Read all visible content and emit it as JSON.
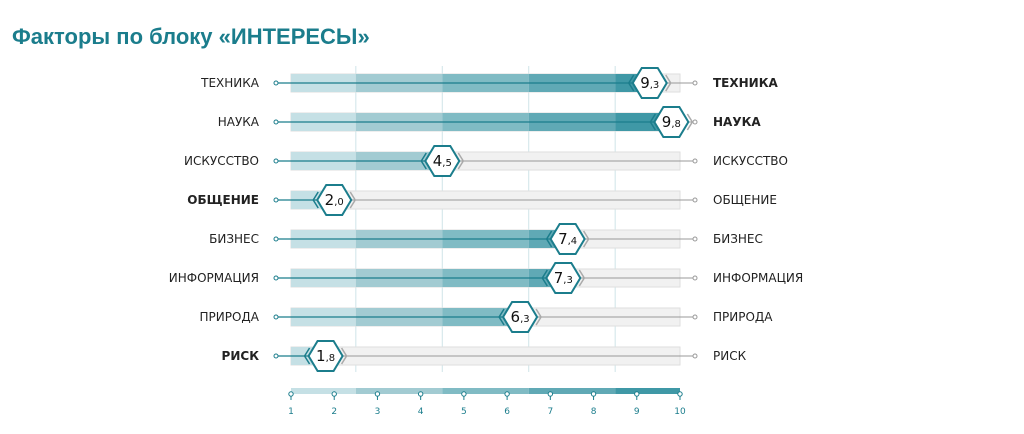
{
  "chart_data": {
    "type": "bar",
    "title": "Факторы по блоку «ИНТЕРЕСЫ»",
    "categories": [
      "ТЕХНИКА",
      "НАУКА",
      "ИСКУССТВО",
      "ОБЩЕНИЕ",
      "БИЗНЕС",
      "ИНФОРМАЦИЯ",
      "ПРИРОДА",
      "РИСК"
    ],
    "values": [
      9.3,
      9.8,
      4.5,
      2.0,
      7.4,
      7.3,
      6.3,
      1.8
    ],
    "value_labels": [
      [
        "9",
        ",3"
      ],
      [
        "9",
        ",8"
      ],
      [
        "4",
        ",5"
      ],
      [
        "2",
        ",0"
      ],
      [
        "7",
        ",4"
      ],
      [
        "7",
        ",3"
      ],
      [
        "6",
        ",3"
      ],
      [
        "1",
        ",8"
      ]
    ],
    "bold_left": [
      "ОБЩЕНИЕ",
      "РИСК"
    ],
    "bold_right": [
      "ТЕХНИКА",
      "НАУКА"
    ],
    "xlim": [
      1,
      10
    ],
    "xticks": [
      "1",
      "2",
      "3",
      "4",
      "5",
      "6",
      "7",
      "8",
      "9",
      "10"
    ],
    "bands": [
      [
        1,
        2.5
      ],
      [
        2.5,
        4.5
      ],
      [
        4.5,
        6.5
      ],
      [
        6.5,
        8.5
      ],
      [
        8.5,
        10
      ]
    ],
    "band_colors": [
      "#c5e0e5",
      "#a2cbd2",
      "#80bbc4",
      "#60a9b5",
      "#3f98a6"
    ],
    "accent": "#1b7d8c"
  }
}
